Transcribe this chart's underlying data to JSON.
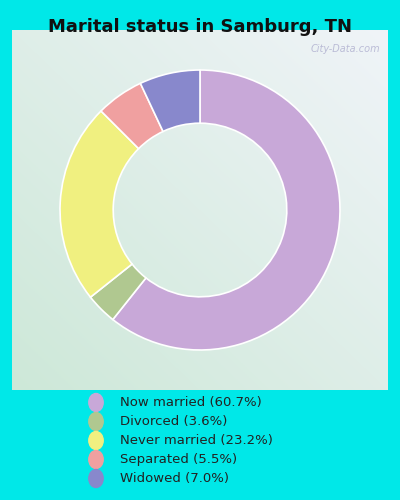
{
  "title": "Marital status in Samburg, TN",
  "categories": [
    "Now married",
    "Divorced",
    "Never married",
    "Separated",
    "Widowed"
  ],
  "values": [
    60.7,
    3.6,
    23.2,
    5.5,
    7.0
  ],
  "colors": [
    "#c8a8d8",
    "#b0c890",
    "#f0f080",
    "#f0a0a0",
    "#8888cc"
  ],
  "outer_bg": "#00e8e8",
  "chart_bg_left": "#cde8d8",
  "chart_bg_right": "#f0f4f8",
  "watermark": "City-Data.com",
  "legend_labels": [
    "Now married (60.7%)",
    "Divorced (3.6%)",
    "Never married (23.2%)",
    "Separated (5.5%)",
    "Widowed (7.0%)"
  ],
  "donut_width": 0.38,
  "start_angle": 90
}
